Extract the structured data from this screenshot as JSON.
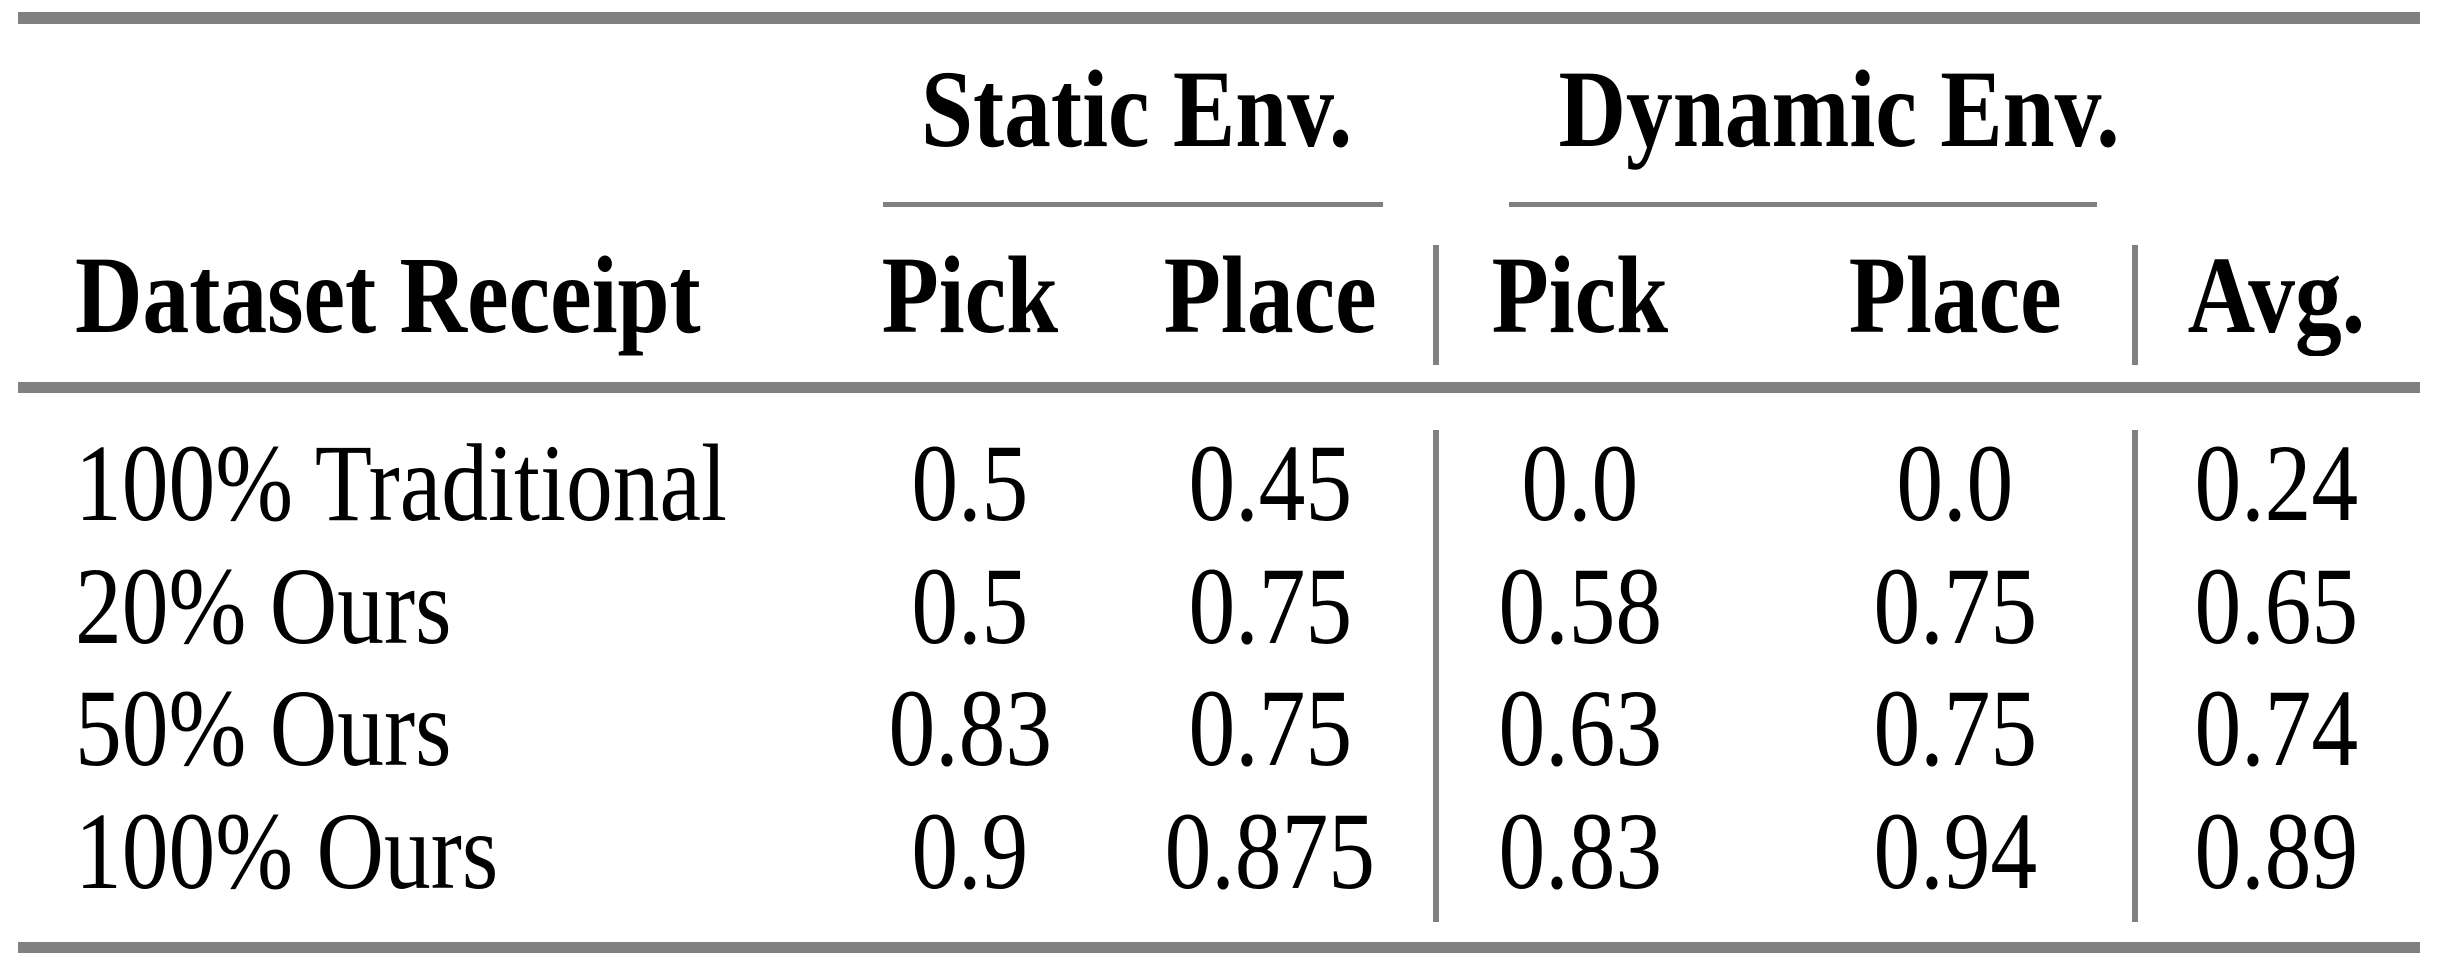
{
  "table": {
    "group_headers": [
      {
        "label": "Static Env."
      },
      {
        "label": "Dynamic Env."
      }
    ],
    "column_headers": {
      "dataset": "Dataset Receipt",
      "static_pick": "Pick",
      "static_place": "Place",
      "dynamic_pick": "Pick",
      "dynamic_place": "Place",
      "avg": "Avg."
    },
    "rows": [
      {
        "label": "100% Traditional",
        "static_pick": "0.5",
        "static_place": "0.45",
        "dynamic_pick": "0.0",
        "dynamic_place": "0.0",
        "avg": "0.24"
      },
      {
        "label": "20% Ours",
        "static_pick": "0.5",
        "static_place": "0.75",
        "dynamic_pick": "0.58",
        "dynamic_place": "0.75",
        "avg": "0.65"
      },
      {
        "label": "50% Ours",
        "static_pick": "0.83",
        "static_place": "0.75",
        "dynamic_pick": "0.63",
        "dynamic_place": "0.75",
        "avg": "0.74"
      },
      {
        "label": "100% Ours",
        "static_pick": "0.9",
        "static_place": "0.875",
        "dynamic_pick": "0.83",
        "dynamic_place": "0.94",
        "avg": "0.89"
      }
    ]
  },
  "colors": {
    "rule_gray": "#808080",
    "text": "#000000",
    "background": "#ffffff"
  },
  "chart_data": {
    "type": "table",
    "columns": [
      "Dataset Receipt",
      "Static Env. Pick",
      "Static Env. Place",
      "Dynamic Env. Pick",
      "Dynamic Env. Place",
      "Avg."
    ],
    "rows": [
      [
        "100% Traditional",
        0.5,
        0.45,
        0.0,
        0.0,
        0.24
      ],
      [
        "20% Ours",
        0.5,
        0.75,
        0.58,
        0.75,
        0.65
      ],
      [
        "50% Ours",
        0.83,
        0.75,
        0.63,
        0.75,
        0.74
      ],
      [
        "100% Ours",
        0.9,
        0.875,
        0.83,
        0.94,
        0.89
      ]
    ]
  }
}
